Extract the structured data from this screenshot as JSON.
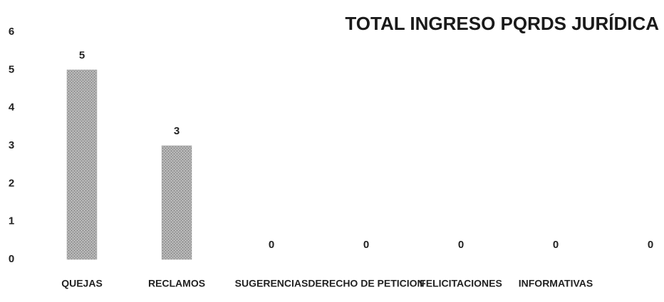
{
  "chart_data": {
    "type": "bar",
    "title": "TOTAL INGRESO PQRDS JURÍDICA",
    "categories": [
      "QUEJAS",
      "RECLAMOS",
      "SUGERENCIAS",
      "DERECHO DE PETICION",
      "FELICITACIONES",
      "INFORMATIVAS",
      null
    ],
    "values": [
      5,
      3,
      0,
      0,
      0,
      0,
      0
    ],
    "color": "#a6a6a6",
    "ylim": [
      0,
      6
    ],
    "yticks": [
      0,
      1,
      2,
      3,
      4,
      5,
      6
    ],
    "grid": false
  }
}
